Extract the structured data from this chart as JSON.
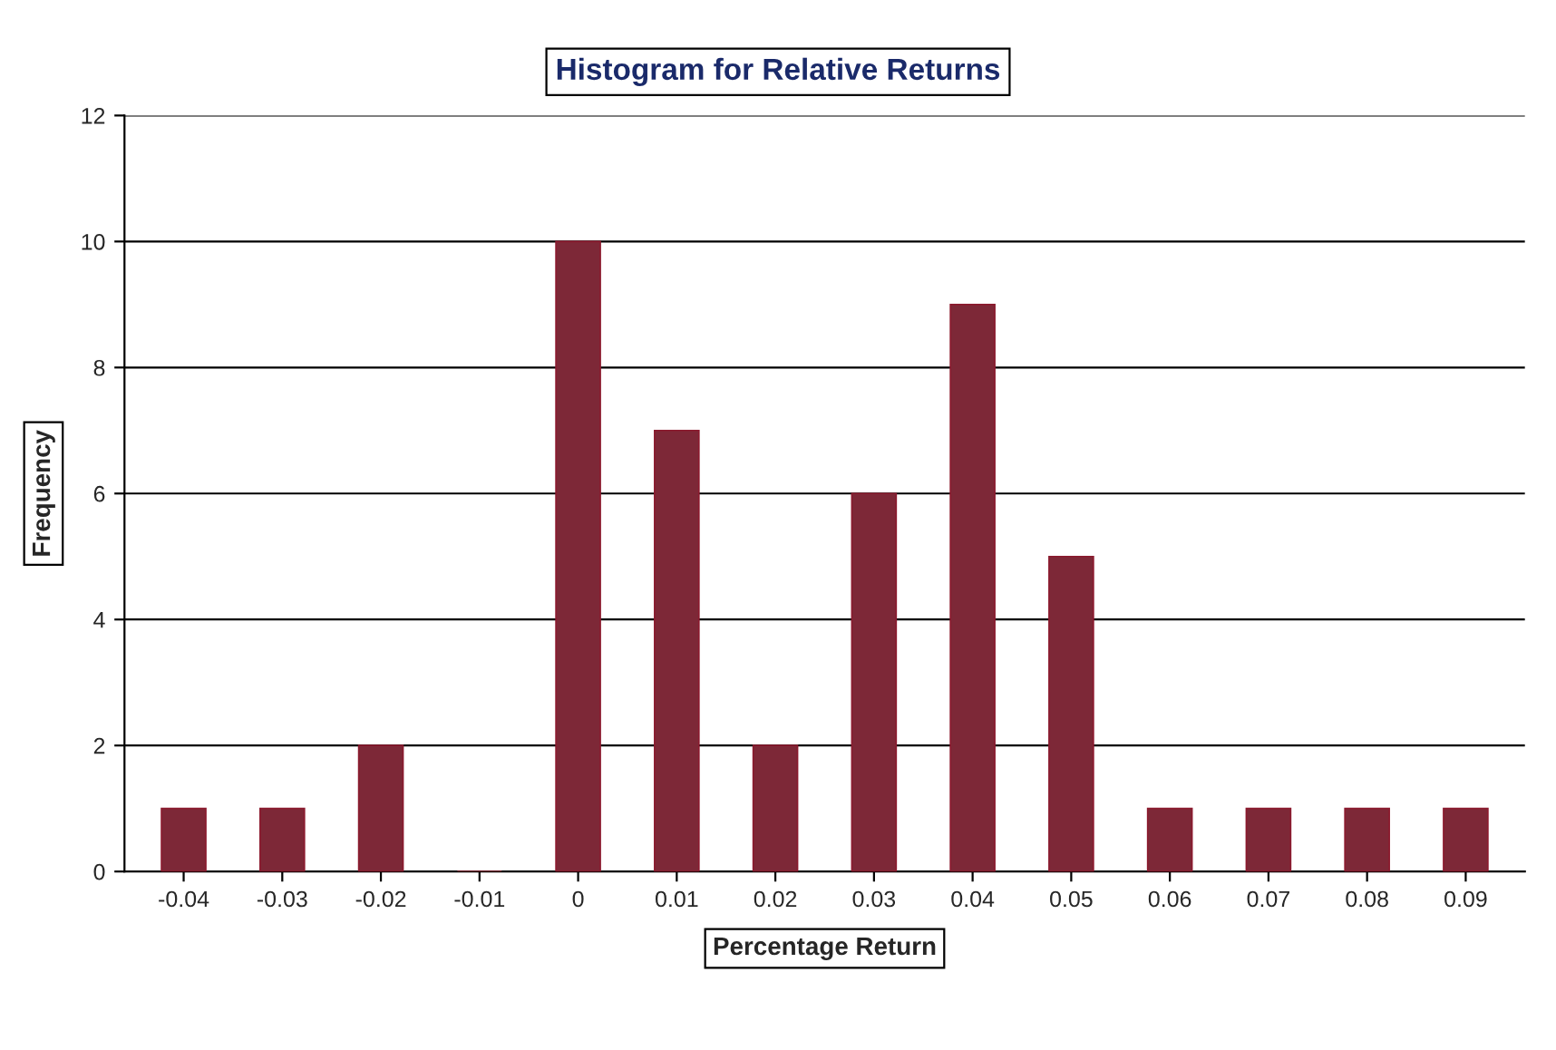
{
  "chart_data": {
    "type": "bar",
    "title": "Histogram for Relative Returns",
    "xlabel": "Percentage Return",
    "ylabel": "Frequency",
    "categories": [
      "-0.04",
      "-0.03",
      "-0.02",
      "-0.01",
      "0",
      "0.01",
      "0.02",
      "0.03",
      "0.04",
      "0.05",
      "0.06",
      "0.07",
      "0.08",
      "0.09"
    ],
    "values": [
      1,
      1,
      2,
      0,
      10,
      7,
      2,
      6,
      9,
      5,
      1,
      1,
      1,
      1
    ],
    "color": "#8b1a2e",
    "ylim": [
      0,
      12
    ],
    "yticks": [
      0,
      2,
      4,
      6,
      8,
      10,
      12
    ],
    "grid": "y"
  }
}
